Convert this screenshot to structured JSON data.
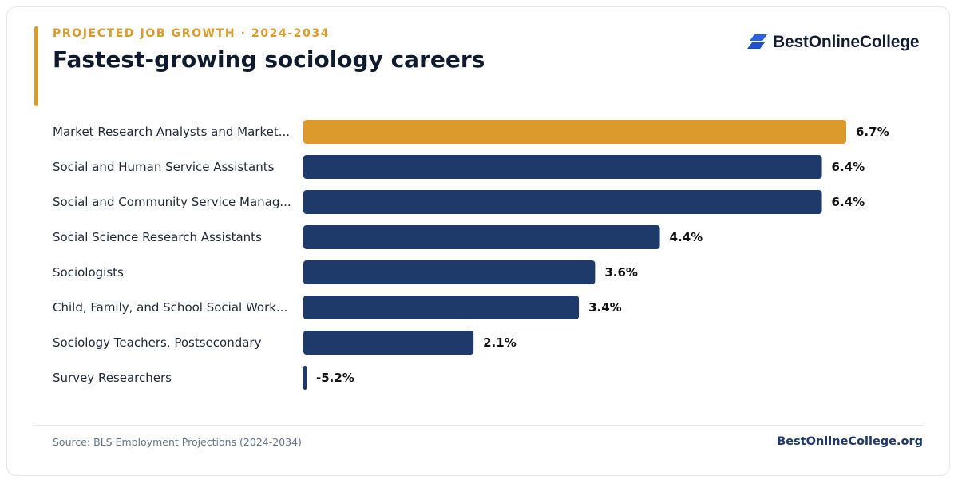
{
  "header": {
    "eyebrow": "PROJECTED JOB GROWTH · 2024-2034",
    "title": "Fastest-growing sociology careers"
  },
  "brand": {
    "name": "BestOnlineCollege",
    "logo_icon": "stacked-parallelograms-logo"
  },
  "colors": {
    "highlight": "#dc9a2a",
    "bar": "#1e3a6a",
    "label": "#1f2937",
    "value": "#111111"
  },
  "chart_data": {
    "type": "bar",
    "orientation": "horizontal",
    "categories": [
      "Market Research Analysts and Market...",
      "Social and Human Service Assistants",
      "Social and Community Service Manag...",
      "Social Science Research Assistants",
      "Sociologists",
      "Child, Family, and School Social Work...",
      "Sociology Teachers, Postsecondary",
      "Survey Researchers"
    ],
    "values": [
      6.7,
      6.4,
      6.4,
      4.4,
      3.6,
      3.4,
      2.1,
      -5.2
    ],
    "value_labels": [
      "6.7%",
      "6.4%",
      "6.4%",
      "4.4%",
      "3.6%",
      "3.4%",
      "2.1%",
      "-5.2%"
    ],
    "highlight_index": 0,
    "xlim": [
      0,
      6.7
    ],
    "grid": false,
    "legend": "none"
  },
  "footer": {
    "source": "Source: BLS Employment Projections (2024-2034)",
    "site": "BestOnlineCollege.org"
  }
}
